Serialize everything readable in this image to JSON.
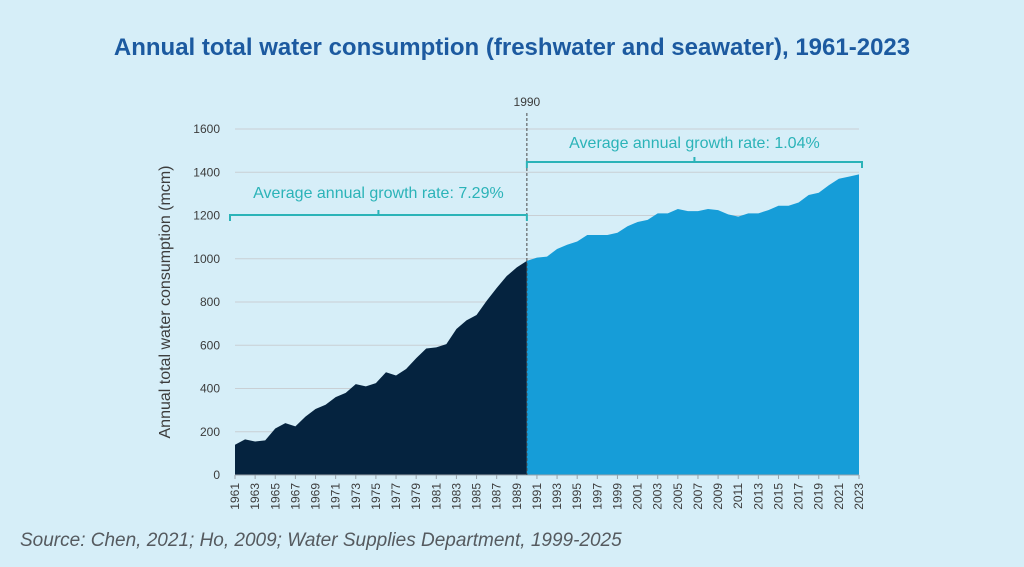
{
  "title": "Annual total water consumption (freshwater and seawater), 1961-2023",
  "source": "Source: Chen, 2021; Ho, 2009; Water Supplies Department, 1999-2025",
  "colors": {
    "background": "#d6eef8",
    "title": "#1c5aa0",
    "area_pre_1990": "#05233f",
    "area_post_1990": "#169dd8",
    "annotation": "#2bb3b8",
    "grid": "#c9cfd4"
  },
  "chart_data": {
    "type": "area",
    "title": "Annual total water consumption (freshwater and seawater), 1961-2023",
    "xlabel": "",
    "ylabel": "Annual total water consumption (mcm)",
    "ylim": [
      0,
      1600
    ],
    "yticks": [
      0,
      200,
      400,
      600,
      800,
      1000,
      1200,
      1400,
      1600
    ],
    "xticks": [
      "1961",
      "1963",
      "1965",
      "1967",
      "1969",
      "1971",
      "1973",
      "1975",
      "1977",
      "1979",
      "1981",
      "1983",
      "1985",
      "1987",
      "1989",
      "1991",
      "1993",
      "1995",
      "1997",
      "1999",
      "2001",
      "2003",
      "2005",
      "2007",
      "2009",
      "2011",
      "2013",
      "2015",
      "2017",
      "2019",
      "2021",
      "2023"
    ],
    "grid": true,
    "x": [
      1961,
      1962,
      1963,
      1964,
      1965,
      1966,
      1967,
      1968,
      1969,
      1970,
      1971,
      1972,
      1973,
      1974,
      1975,
      1976,
      1977,
      1978,
      1979,
      1980,
      1981,
      1982,
      1983,
      1984,
      1985,
      1986,
      1987,
      1988,
      1989,
      1990,
      1991,
      1992,
      1993,
      1994,
      1995,
      1996,
      1997,
      1998,
      1999,
      2000,
      2001,
      2002,
      2003,
      2004,
      2005,
      2006,
      2007,
      2008,
      2009,
      2010,
      2011,
      2012,
      2013,
      2014,
      2015,
      2016,
      2017,
      2018,
      2019,
      2020,
      2021,
      2022,
      2023
    ],
    "values": [
      140,
      165,
      155,
      160,
      215,
      240,
      225,
      270,
      305,
      325,
      360,
      380,
      420,
      410,
      425,
      475,
      460,
      490,
      540,
      585,
      590,
      605,
      675,
      715,
      740,
      805,
      865,
      920,
      960,
      990,
      1005,
      1010,
      1045,
      1065,
      1080,
      1110,
      1110,
      1110,
      1120,
      1150,
      1170,
      1180,
      1210,
      1210,
      1230,
      1220,
      1220,
      1230,
      1225,
      1205,
      1195,
      1210,
      1210,
      1225,
      1245,
      1245,
      1260,
      1295,
      1305,
      1340,
      1370,
      1380,
      1390
    ],
    "series": [
      {
        "name": "",
        "from": 1961,
        "to": 1990,
        "color": "#05233f"
      },
      {
        "name": "",
        "from": 1990,
        "to": 2023,
        "color": "#169dd8"
      }
    ],
    "marker": {
      "x": 1990,
      "label": "1990"
    },
    "annotations": [
      {
        "text": "Average annual growth rate: 7.29%",
        "from": 1961,
        "to": 1990,
        "y": 1200
      },
      {
        "text": "Average annual growth rate: 1.04%",
        "from": 1990,
        "to": 2023,
        "y": 1420
      }
    ]
  }
}
